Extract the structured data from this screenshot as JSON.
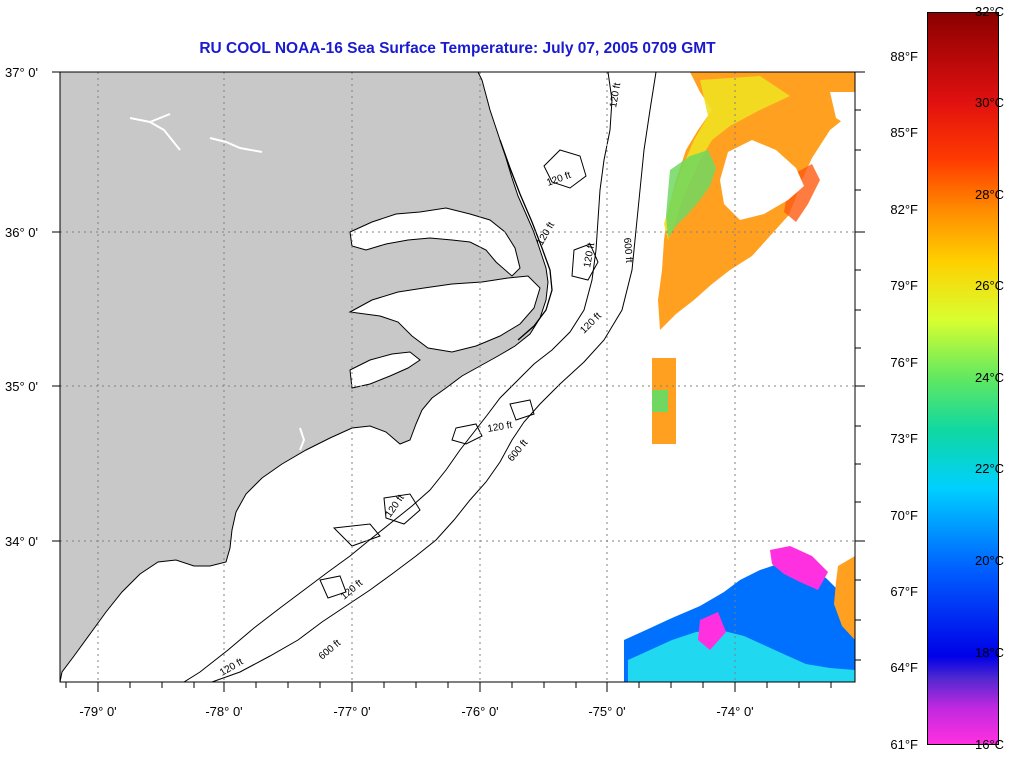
{
  "title": "RU COOL  NOAA-16  Sea Surface Temperature:  July 07, 2005 0709 GMT",
  "colors": {
    "land": "#c8c8c8",
    "title": "#1a1ad0",
    "grid": "#808080"
  },
  "map": {
    "lon_labels": [
      "-79° 0'",
      "-78° 0'",
      "-77° 0'",
      "-76° 0'",
      "-75° 0'",
      "-74° 0'"
    ],
    "lat_labels": [
      "37° 0'",
      "36° 0'",
      "35° 0'",
      "34° 0'"
    ],
    "contour_labels": [
      "120 ft",
      "120 ft",
      "600 ft",
      "120 ft",
      "120 ft",
      "120 ft",
      "120 ft",
      "600 ft",
      "120 ft",
      "120 ft",
      "600 ft",
      "120 ft"
    ]
  },
  "colorbar": {
    "fahrenheit": [
      "88°F",
      "85°F",
      "82°F",
      "79°F",
      "76°F",
      "73°F",
      "70°F",
      "67°F",
      "64°F",
      "61°F"
    ],
    "celsius": [
      "32°C",
      "30°C",
      "28°C",
      "26°C",
      "24°C",
      "22°C",
      "20°C",
      "18°C",
      "16°C"
    ]
  }
}
